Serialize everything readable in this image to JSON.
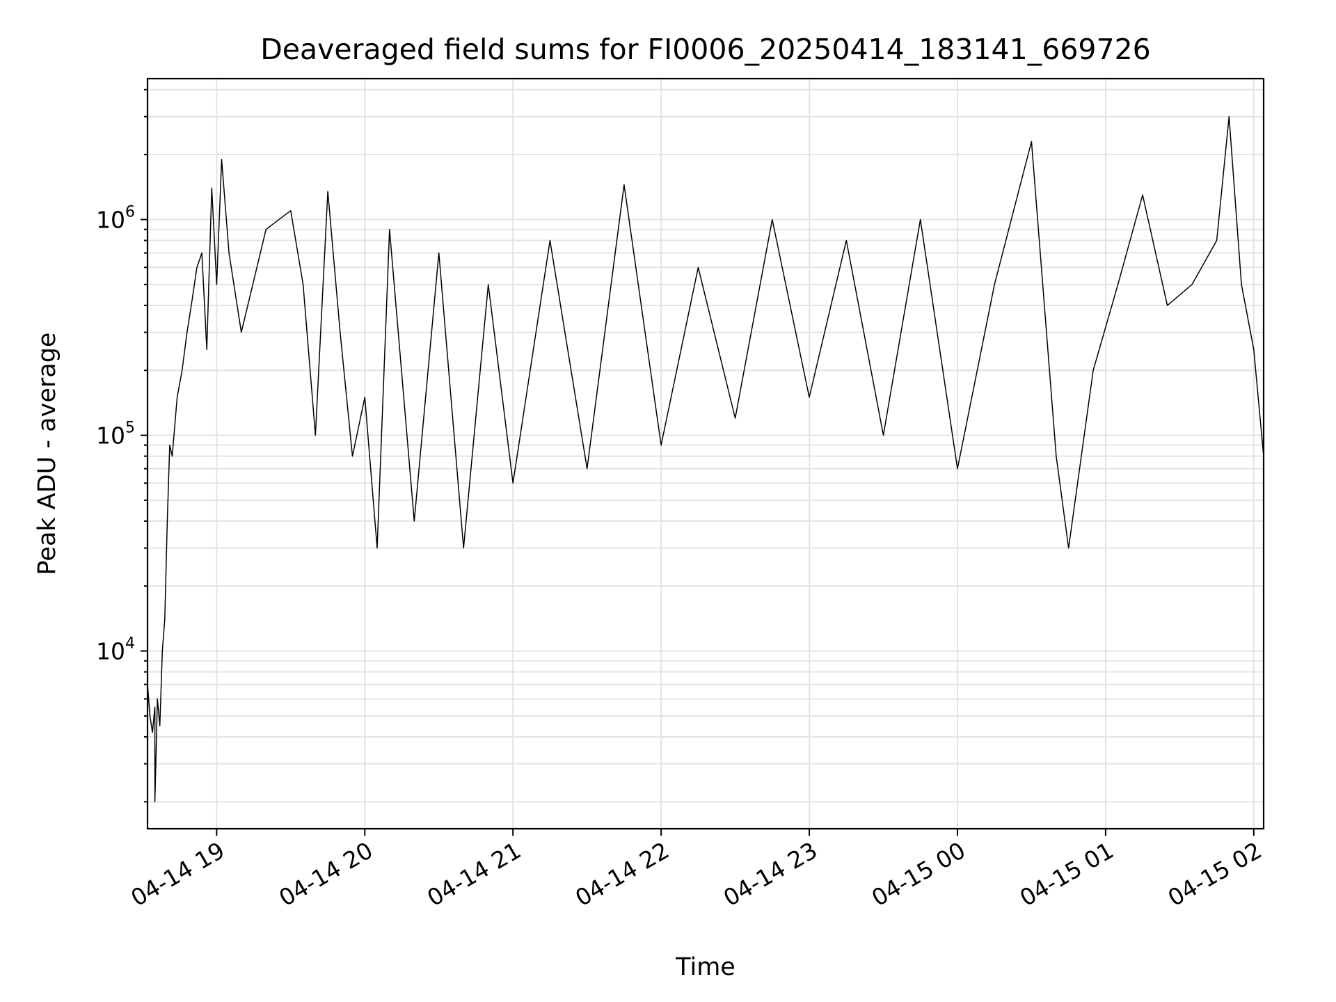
{
  "chart_data": {
    "type": "line",
    "title": "Deaveraged field sums for FI0006_20250414_183141_669726",
    "xlabel": "Time",
    "ylabel": "Peak ADU - average",
    "yscale": "log",
    "ylim": [
      1500,
      4500000
    ],
    "xlim": [
      "2025-04-14 18:32",
      "2025-04-15 02:04"
    ],
    "grid": true,
    "x_ticks": [
      {
        "value": "2025-04-14 19:00",
        "label": "04-14 19"
      },
      {
        "value": "2025-04-14 20:00",
        "label": "04-14 20"
      },
      {
        "value": "2025-04-14 21:00",
        "label": "04-14 21"
      },
      {
        "value": "2025-04-14 22:00",
        "label": "04-14 22"
      },
      {
        "value": "2025-04-14 23:00",
        "label": "04-14 23"
      },
      {
        "value": "2025-04-15 00:00",
        "label": "04-15 00"
      },
      {
        "value": "2025-04-15 01:00",
        "label": "04-15 01"
      },
      {
        "value": "2025-04-15 02:00",
        "label": "04-15 02"
      }
    ],
    "y_ticks": [
      {
        "value": 10000,
        "base": "10",
        "exp": "4"
      },
      {
        "value": 100000,
        "base": "10",
        "exp": "5"
      },
      {
        "value": 1000000,
        "base": "10",
        "exp": "6"
      }
    ],
    "series": [
      {
        "color": "#000000",
        "points": [
          [
            "2025-04-14 18:32",
            7000
          ],
          [
            "2025-04-14 18:33",
            5000
          ],
          [
            "2025-04-14 18:34",
            4200
          ],
          [
            "2025-04-14 18:35",
            5500
          ],
          [
            "2025-04-14 18:35",
            2000
          ],
          [
            "2025-04-14 18:36",
            6000
          ],
          [
            "2025-04-14 18:37",
            4500
          ],
          [
            "2025-04-14 18:38",
            10000
          ],
          [
            "2025-04-14 18:39",
            14000
          ],
          [
            "2025-04-14 18:40",
            40000
          ],
          [
            "2025-04-14 18:41",
            90000
          ],
          [
            "2025-04-14 18:42",
            80000
          ],
          [
            "2025-04-14 18:44",
            150000
          ],
          [
            "2025-04-14 18:46",
            200000
          ],
          [
            "2025-04-14 18:48",
            300000
          ],
          [
            "2025-04-14 18:50",
            420000
          ],
          [
            "2025-04-14 18:52",
            600000
          ],
          [
            "2025-04-14 18:54",
            700000
          ],
          [
            "2025-04-14 18:56",
            250000
          ],
          [
            "2025-04-14 18:58",
            1400000
          ],
          [
            "2025-04-14 19:00",
            500000
          ],
          [
            "2025-04-14 19:02",
            1900000
          ],
          [
            "2025-04-14 19:05",
            700000
          ],
          [
            "2025-04-14 19:10",
            300000
          ],
          [
            "2025-04-14 19:20",
            900000
          ],
          [
            "2025-04-14 19:30",
            1100000
          ],
          [
            "2025-04-14 19:35",
            500000
          ],
          [
            "2025-04-14 19:40",
            100000
          ],
          [
            "2025-04-14 19:45",
            1350000
          ],
          [
            "2025-04-14 19:50",
            300000
          ],
          [
            "2025-04-14 19:55",
            80000
          ],
          [
            "2025-04-14 20:00",
            150000
          ],
          [
            "2025-04-14 20:05",
            30000
          ],
          [
            "2025-04-14 20:10",
            900000
          ],
          [
            "2025-04-14 20:20",
            40000
          ],
          [
            "2025-04-14 20:30",
            700000
          ],
          [
            "2025-04-14 20:40",
            30000
          ],
          [
            "2025-04-14 20:50",
            500000
          ],
          [
            "2025-04-14 21:00",
            60000
          ],
          [
            "2025-04-14 21:15",
            800000
          ],
          [
            "2025-04-14 21:30",
            70000
          ],
          [
            "2025-04-14 21:45",
            1450000
          ],
          [
            "2025-04-14 22:00",
            90000
          ],
          [
            "2025-04-14 22:15",
            600000
          ],
          [
            "2025-04-14 22:30",
            120000
          ],
          [
            "2025-04-14 22:45",
            1000000
          ],
          [
            "2025-04-14 23:00",
            150000
          ],
          [
            "2025-04-14 23:15",
            800000
          ],
          [
            "2025-04-14 23:30",
            100000
          ],
          [
            "2025-04-14 23:45",
            1000000
          ],
          [
            "2025-04-15 00:00",
            70000
          ],
          [
            "2025-04-15 00:15",
            500000
          ],
          [
            "2025-04-15 00:30",
            2300000
          ],
          [
            "2025-04-15 00:40",
            80000
          ],
          [
            "2025-04-15 00:45",
            30000
          ],
          [
            "2025-04-15 00:55",
            200000
          ],
          [
            "2025-04-15 01:05",
            500000
          ],
          [
            "2025-04-15 01:15",
            1300000
          ],
          [
            "2025-04-15 01:25",
            400000
          ],
          [
            "2025-04-15 01:35",
            500000
          ],
          [
            "2025-04-15 01:45",
            800000
          ],
          [
            "2025-04-15 01:50",
            3000000
          ],
          [
            "2025-04-15 01:55",
            500000
          ],
          [
            "2025-04-15 02:00",
            250000
          ],
          [
            "2025-04-15 02:04",
            80000
          ]
        ]
      }
    ]
  }
}
